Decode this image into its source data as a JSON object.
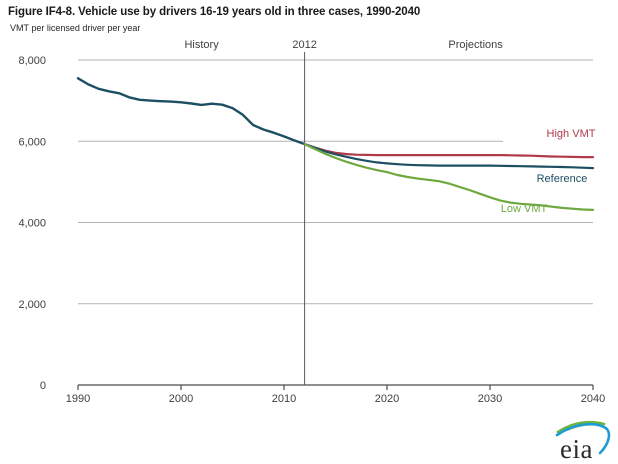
{
  "page": {
    "title": "Figure IF4-8. Vehicle use by drivers 16-19 years old in three cases, 1990-2040",
    "subtitle": "VMT per licensed driver per year"
  },
  "footer": {
    "logo_text": "eia"
  },
  "style": {
    "grid_color": "#b3b3b3",
    "axis_color": "#4d4d4d",
    "divider_color": "#595959",
    "annotation_color": "#404040",
    "logo_green": "#6db33f",
    "logo_yellow": "#cfd23a",
    "logo_blue": "#1e9cd7"
  },
  "chart_data": {
    "type": "line",
    "title": "Figure IF4-8. Vehicle use by drivers 16-19 years old in three cases, 1990-2040",
    "ylabel": "VMT per licensed driver per year",
    "xlabel": "",
    "xlim": [
      1990,
      2040
    ],
    "ylim": [
      0,
      8000
    ],
    "grid": true,
    "legend_position": "end-of-line-labels",
    "xticks": [
      1990,
      2000,
      2010,
      2020,
      2030,
      2040
    ],
    "yticks": [
      {
        "v": 0,
        "label": "0"
      },
      {
        "v": 2000,
        "label": "2,000"
      },
      {
        "v": 4000,
        "label": "4,000"
      },
      {
        "v": 6000,
        "label": "6,000",
        "short": true
      },
      {
        "v": 8000,
        "label": "8,000"
      }
    ],
    "divider": {
      "year": 2012,
      "label": "2012"
    },
    "region_labels": [
      {
        "text": "History",
        "x_year": 2002
      },
      {
        "text": "Projections",
        "x_year": 2028.6
      }
    ],
    "series": [
      {
        "name": "History",
        "color": "#1d4f63",
        "width": 2.4,
        "start_year": 1990,
        "values": [
          7550,
          7400,
          7290,
          7230,
          7180,
          7080,
          7020,
          7000,
          6985,
          6975,
          6960,
          6930,
          6895,
          6925,
          6900,
          6815,
          6650,
          6400,
          6290,
          6210,
          6120,
          6020,
          5930
        ]
      },
      {
        "name": "High VMT",
        "color": "#b03a48",
        "width": 2.2,
        "start_year": 2012,
        "label_pos": [
          571,
          137
        ],
        "values": [
          5930,
          5845,
          5770,
          5715,
          5685,
          5670,
          5665,
          5660,
          5660,
          5660,
          5660,
          5660,
          5660,
          5660,
          5660,
          5660,
          5660,
          5660,
          5660,
          5660,
          5655,
          5650,
          5645,
          5635,
          5625,
          5620,
          5615,
          5610,
          5610
        ]
      },
      {
        "name": "Reference",
        "color": "#1d4f63",
        "width": 2.2,
        "start_year": 2012,
        "label_pos": [
          562,
          182
        ],
        "values": [
          5930,
          5840,
          5750,
          5680,
          5620,
          5565,
          5520,
          5480,
          5455,
          5435,
          5420,
          5410,
          5405,
          5400,
          5400,
          5400,
          5400,
          5400,
          5400,
          5395,
          5390,
          5385,
          5380,
          5375,
          5370,
          5365,
          5360,
          5350,
          5340
        ]
      },
      {
        "name": "Low VMT",
        "color": "#6fa83f",
        "width": 2.2,
        "start_year": 2012,
        "label_pos": [
          524,
          212
        ],
        "values": [
          5930,
          5810,
          5690,
          5590,
          5500,
          5420,
          5350,
          5290,
          5240,
          5170,
          5120,
          5080,
          5050,
          5020,
          4960,
          4880,
          4800,
          4710,
          4620,
          4540,
          4490,
          4460,
          4440,
          4420,
          4390,
          4360,
          4340,
          4320,
          4310
        ]
      }
    ]
  }
}
